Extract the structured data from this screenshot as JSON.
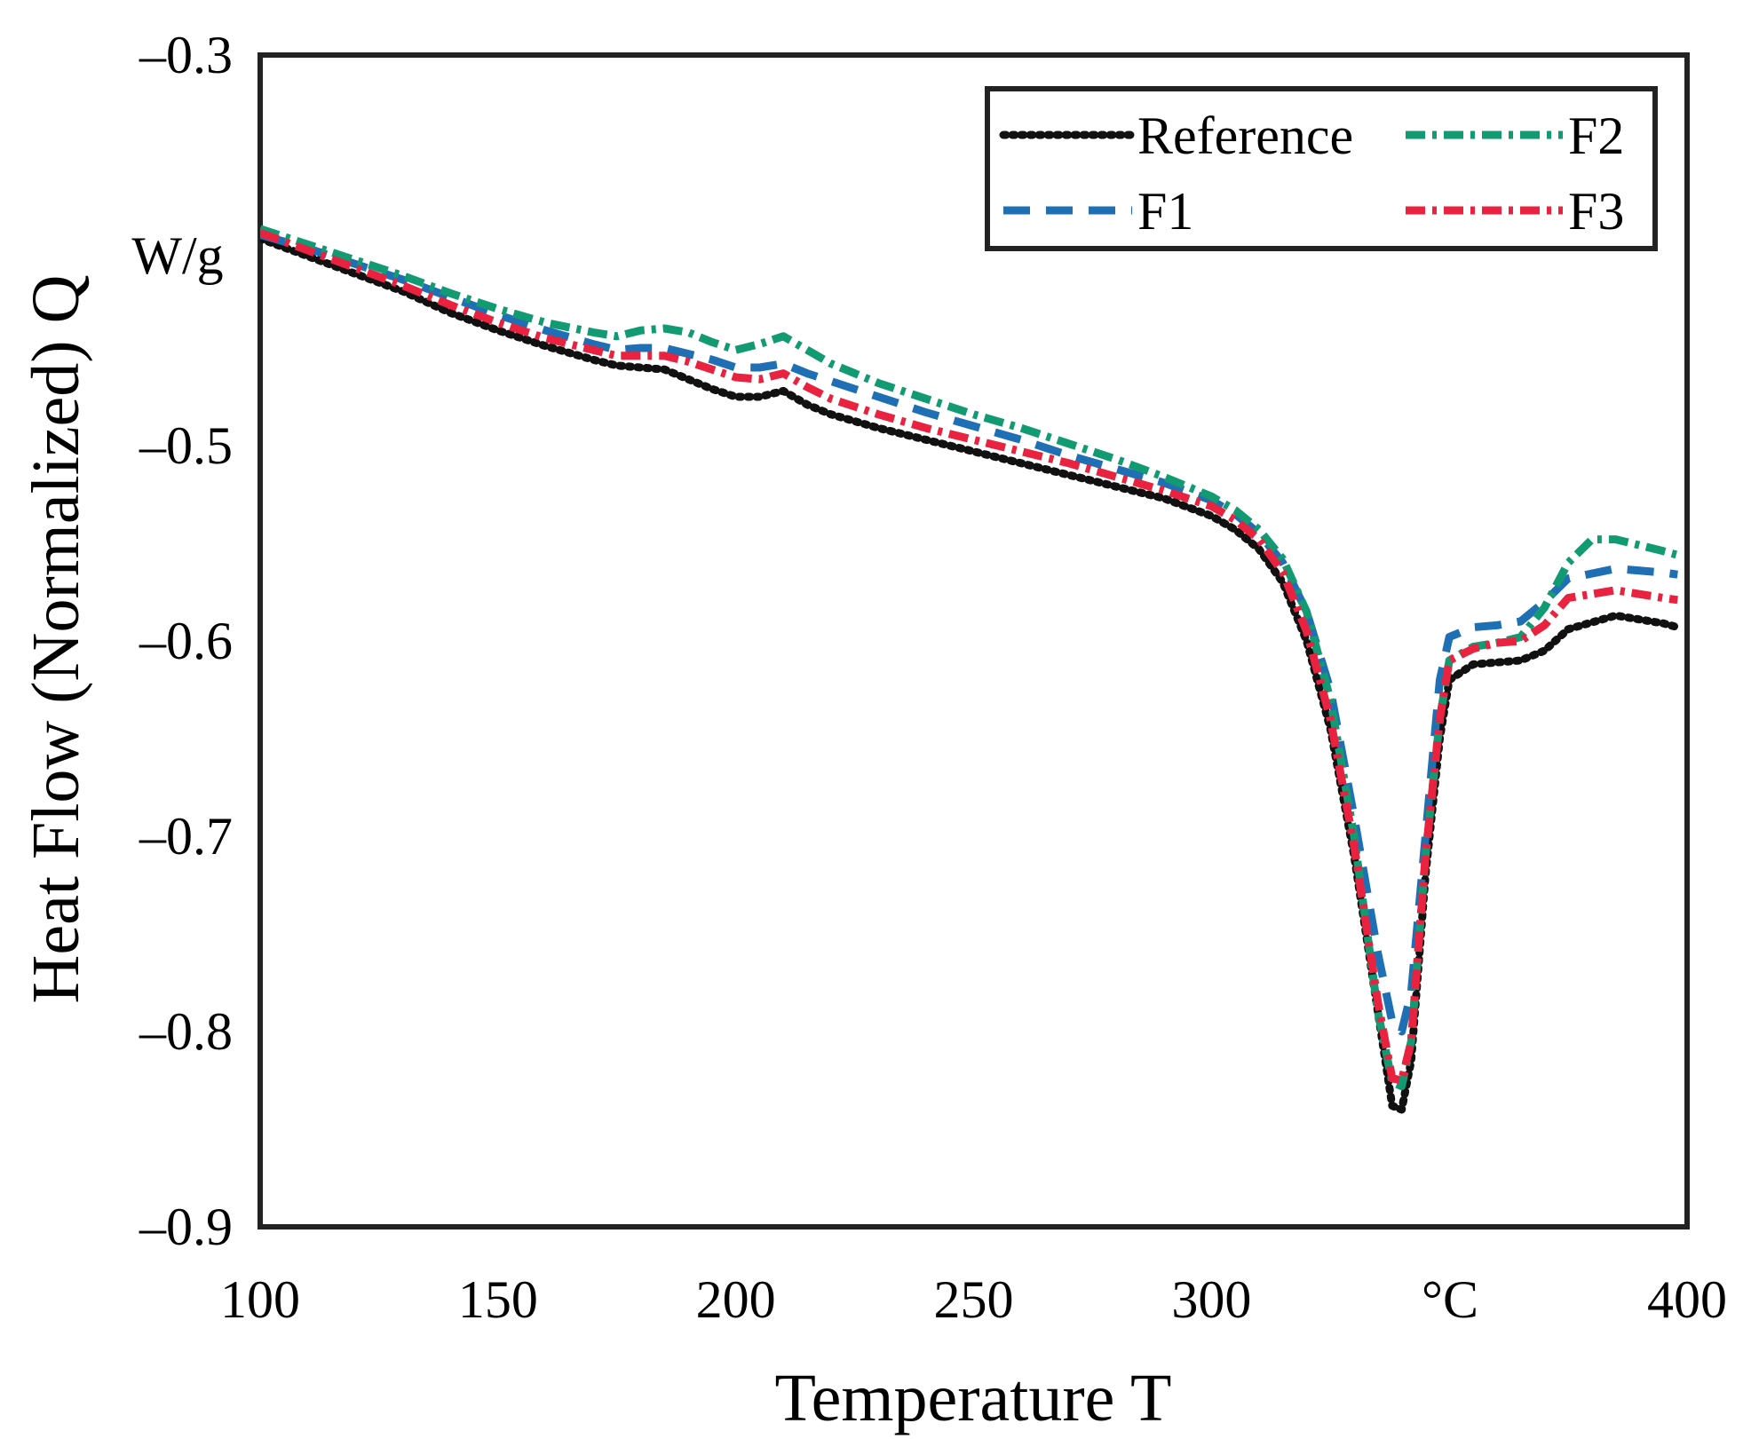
{
  "chart_data": {
    "type": "line",
    "title": "",
    "xlabel": "Temperature T",
    "ylabel": "Heat Flow (Normalized) Q",
    "x_unit": "°C",
    "y_unit": "W/g",
    "xlim": [
      100,
      400
    ],
    "ylim": [
      -0.9,
      -0.3
    ],
    "x_ticks": [
      100,
      150,
      200,
      250,
      300,
      400
    ],
    "x_tick_labels": [
      "100",
      "150",
      "200",
      "250",
      "300",
      "400"
    ],
    "y_ticks": [
      -0.3,
      -0.5,
      -0.6,
      -0.7,
      -0.8,
      -0.9
    ],
    "y_tick_labels": [
      "–0.3",
      "–0.5",
      "–0.6",
      "–0.7",
      "–0.8",
      "–0.9"
    ],
    "grid": false,
    "legend_position": "top-right",
    "series": [
      {
        "name": "Reference",
        "color": "#111111",
        "style": "dotted",
        "points": [
          [
            100,
            -0.394
          ],
          [
            110,
            -0.403
          ],
          [
            120,
            -0.412
          ],
          [
            130,
            -0.421
          ],
          [
            140,
            -0.432
          ],
          [
            150,
            -0.441
          ],
          [
            160,
            -0.449
          ],
          [
            170,
            -0.456
          ],
          [
            175,
            -0.459
          ],
          [
            180,
            -0.46
          ],
          [
            185,
            -0.461
          ],
          [
            190,
            -0.466
          ],
          [
            195,
            -0.471
          ],
          [
            200,
            -0.475
          ],
          [
            205,
            -0.475
          ],
          [
            210,
            -0.472
          ],
          [
            215,
            -0.479
          ],
          [
            220,
            -0.484
          ],
          [
            230,
            -0.491
          ],
          [
            240,
            -0.497
          ],
          [
            250,
            -0.503
          ],
          [
            260,
            -0.509
          ],
          [
            270,
            -0.515
          ],
          [
            280,
            -0.521
          ],
          [
            290,
            -0.527
          ],
          [
            300,
            -0.536
          ],
          [
            305,
            -0.543
          ],
          [
            310,
            -0.553
          ],
          [
            315,
            -0.57
          ],
          [
            320,
            -0.6
          ],
          [
            325,
            -0.645
          ],
          [
            330,
            -0.71
          ],
          [
            335,
            -0.79
          ],
          [
            338,
            -0.838
          ],
          [
            340,
            -0.84
          ],
          [
            342,
            -0.815
          ],
          [
            345,
            -0.72
          ],
          [
            348,
            -0.65
          ],
          [
            350,
            -0.62
          ],
          [
            355,
            -0.612
          ],
          [
            365,
            -0.61
          ],
          [
            370,
            -0.605
          ],
          [
            375,
            -0.594
          ],
          [
            385,
            -0.587
          ],
          [
            395,
            -0.591
          ],
          [
            398,
            -0.593
          ]
        ]
      },
      {
        "name": "F1",
        "color": "#1f6fb4",
        "style": "dashed",
        "points": [
          [
            100,
            -0.392
          ],
          [
            110,
            -0.399
          ],
          [
            120,
            -0.407
          ],
          [
            130,
            -0.415
          ],
          [
            140,
            -0.424
          ],
          [
            150,
            -0.433
          ],
          [
            160,
            -0.441
          ],
          [
            170,
            -0.448
          ],
          [
            175,
            -0.451
          ],
          [
            180,
            -0.45
          ],
          [
            185,
            -0.45
          ],
          [
            190,
            -0.453
          ],
          [
            195,
            -0.456
          ],
          [
            200,
            -0.46
          ],
          [
            205,
            -0.46
          ],
          [
            210,
            -0.458
          ],
          [
            215,
            -0.463
          ],
          [
            220,
            -0.467
          ],
          [
            230,
            -0.475
          ],
          [
            240,
            -0.483
          ],
          [
            250,
            -0.49
          ],
          [
            260,
            -0.497
          ],
          [
            270,
            -0.505
          ],
          [
            280,
            -0.512
          ],
          [
            290,
            -0.519
          ],
          [
            300,
            -0.528
          ],
          [
            305,
            -0.535
          ],
          [
            310,
            -0.545
          ],
          [
            315,
            -0.56
          ],
          [
            320,
            -0.585
          ],
          [
            325,
            -0.625
          ],
          [
            330,
            -0.69
          ],
          [
            335,
            -0.76
          ],
          [
            338,
            -0.795
          ],
          [
            340,
            -0.8
          ],
          [
            342,
            -0.78
          ],
          [
            345,
            -0.7
          ],
          [
            348,
            -0.62
          ],
          [
            350,
            -0.598
          ],
          [
            355,
            -0.593
          ],
          [
            360,
            -0.592
          ],
          [
            365,
            -0.59
          ],
          [
            370,
            -0.58
          ],
          [
            375,
            -0.568
          ],
          [
            385,
            -0.563
          ],
          [
            395,
            -0.565
          ],
          [
            398,
            -0.566
          ]
        ]
      },
      {
        "name": "F2",
        "color": "#129a73",
        "style": "dash-dot",
        "points": [
          [
            100,
            -0.389
          ],
          [
            110,
            -0.397
          ],
          [
            120,
            -0.405
          ],
          [
            130,
            -0.413
          ],
          [
            140,
            -0.422
          ],
          [
            150,
            -0.43
          ],
          [
            160,
            -0.437
          ],
          [
            170,
            -0.442
          ],
          [
            175,
            -0.444
          ],
          [
            180,
            -0.441
          ],
          [
            185,
            -0.44
          ],
          [
            190,
            -0.442
          ],
          [
            195,
            -0.447
          ],
          [
            200,
            -0.451
          ],
          [
            205,
            -0.448
          ],
          [
            210,
            -0.444
          ],
          [
            215,
            -0.451
          ],
          [
            220,
            -0.458
          ],
          [
            230,
            -0.468
          ],
          [
            240,
            -0.476
          ],
          [
            250,
            -0.484
          ],
          [
            260,
            -0.491
          ],
          [
            270,
            -0.499
          ],
          [
            280,
            -0.507
          ],
          [
            290,
            -0.516
          ],
          [
            300,
            -0.526
          ],
          [
            305,
            -0.533
          ],
          [
            310,
            -0.543
          ],
          [
            315,
            -0.558
          ],
          [
            320,
            -0.585
          ],
          [
            325,
            -0.63
          ],
          [
            330,
            -0.7
          ],
          [
            335,
            -0.79
          ],
          [
            338,
            -0.826
          ],
          [
            340,
            -0.828
          ],
          [
            342,
            -0.805
          ],
          [
            345,
            -0.71
          ],
          [
            348,
            -0.64
          ],
          [
            350,
            -0.61
          ],
          [
            355,
            -0.603
          ],
          [
            360,
            -0.601
          ],
          [
            365,
            -0.598
          ],
          [
            370,
            -0.583
          ],
          [
            375,
            -0.56
          ],
          [
            380,
            -0.548
          ],
          [
            385,
            -0.548
          ],
          [
            395,
            -0.554
          ],
          [
            398,
            -0.556
          ]
        ]
      },
      {
        "name": "F3",
        "color": "#e8223f",
        "style": "dash-dot",
        "points": [
          [
            100,
            -0.391
          ],
          [
            110,
            -0.4
          ],
          [
            120,
            -0.409
          ],
          [
            130,
            -0.418
          ],
          [
            140,
            -0.428
          ],
          [
            150,
            -0.437
          ],
          [
            160,
            -0.445
          ],
          [
            170,
            -0.451
          ],
          [
            175,
            -0.454
          ],
          [
            180,
            -0.454
          ],
          [
            185,
            -0.454
          ],
          [
            190,
            -0.457
          ],
          [
            195,
            -0.461
          ],
          [
            200,
            -0.465
          ],
          [
            205,
            -0.466
          ],
          [
            210,
            -0.463
          ],
          [
            215,
            -0.47
          ],
          [
            220,
            -0.476
          ],
          [
            230,
            -0.484
          ],
          [
            240,
            -0.491
          ],
          [
            250,
            -0.497
          ],
          [
            260,
            -0.503
          ],
          [
            270,
            -0.509
          ],
          [
            280,
            -0.516
          ],
          [
            290,
            -0.523
          ],
          [
            300,
            -0.531
          ],
          [
            305,
            -0.538
          ],
          [
            310,
            -0.548
          ],
          [
            315,
            -0.565
          ],
          [
            320,
            -0.595
          ],
          [
            325,
            -0.64
          ],
          [
            330,
            -0.705
          ],
          [
            335,
            -0.785
          ],
          [
            338,
            -0.824
          ],
          [
            340,
            -0.825
          ],
          [
            342,
            -0.805
          ],
          [
            345,
            -0.71
          ],
          [
            348,
            -0.64
          ],
          [
            350,
            -0.61
          ],
          [
            355,
            -0.604
          ],
          [
            360,
            -0.601
          ],
          [
            365,
            -0.6
          ],
          [
            370,
            -0.592
          ],
          [
            375,
            -0.578
          ],
          [
            385,
            -0.574
          ],
          [
            395,
            -0.578
          ],
          [
            398,
            -0.579
          ]
        ]
      }
    ]
  }
}
